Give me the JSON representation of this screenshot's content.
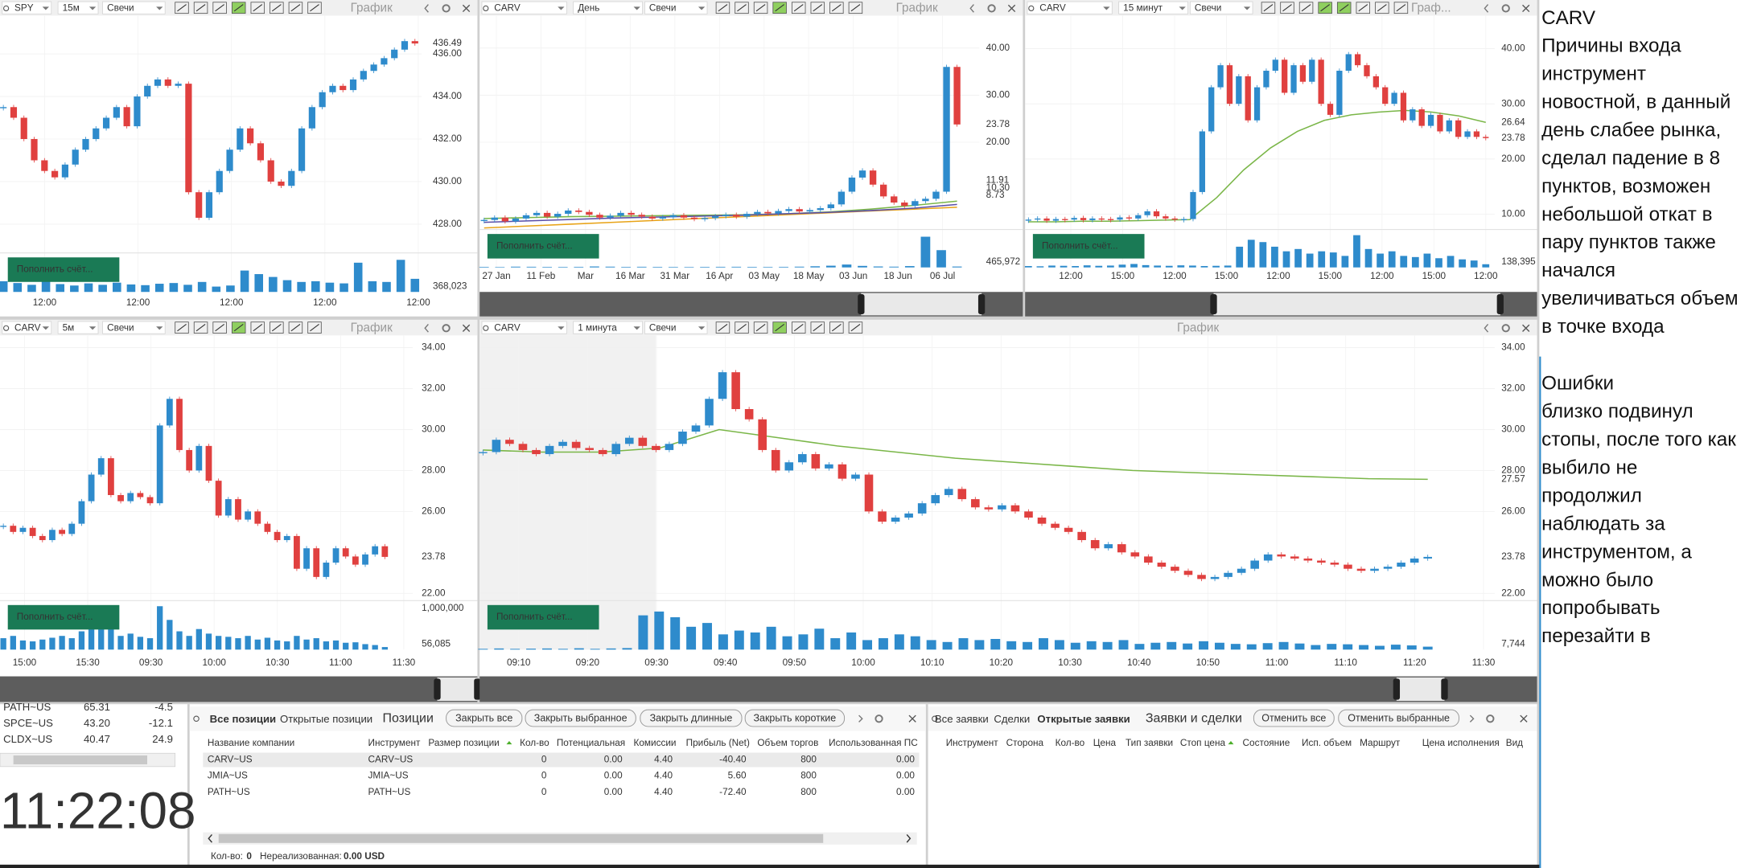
{
  "charts": [
    {
      "symbol": "SPY",
      "timeframe": "15м",
      "style": "Свечи",
      "title": "График",
      "button": "Пополнить счёт...",
      "ylim": [
        426.7,
        437.8
      ],
      "yticks": [
        {
          "value": 428,
          "label": "428.00"
        },
        {
          "value": 430,
          "label": "430.00"
        },
        {
          "value": 432,
          "label": "432.00"
        },
        {
          "value": 434,
          "label": "434.00"
        },
        {
          "value": 436,
          "label": "436.00"
        }
      ],
      "price_labels": [
        {
          "value": 436.49,
          "color": "#d0312d"
        }
      ],
      "xticks": [
        "12:00",
        "12:00",
        "12:00",
        "12:00",
        "12:00"
      ],
      "closes": [
        433.5,
        433.0,
        432.0,
        431.0,
        430.5,
        430.2,
        430.8,
        431.5,
        432.0,
        432.5,
        433.0,
        433.5,
        432.6,
        434.0,
        434.5,
        434.8,
        434.5,
        434.6,
        429.5,
        428.3,
        429.5,
        430.5,
        431.5,
        432.5,
        431.8,
        431.0,
        430.0,
        429.8,
        430.5,
        432.5,
        433.5,
        434.2,
        434.5,
        434.3,
        434.8,
        435.2,
        435.5,
        435.8,
        436.2,
        436.6,
        436.49
      ],
      "ma": [],
      "volumes": [
        300000,
        250000,
        200000,
        350000,
        220000,
        180000,
        240000,
        200000,
        260000,
        210000,
        190000,
        230000,
        250000,
        200000,
        280000,
        150000,
        180000,
        600000,
        500000,
        420000,
        330000,
        280000,
        300000,
        260000,
        240000,
        820000,
        300000,
        280000,
        900000,
        368023
      ],
      "volume_ylim": [
        0,
        1000000
      ],
      "volume_ticks": [],
      "volume_label": "368,023"
    },
    {
      "symbol": "CARV",
      "timeframe": "День",
      "style": "Свечи",
      "title": "График",
      "button": "Пополнить счёт...",
      "ylim": [
        1.7,
        46.9
      ],
      "yticks": [
        {
          "value": 20,
          "label": "20.00"
        },
        {
          "value": 30,
          "label": "30.00"
        },
        {
          "value": 40,
          "label": "40.00"
        }
      ],
      "price_labels": [
        {
          "value": 23.78,
          "color": "#d0312d"
        },
        {
          "value": 11.91,
          "color": "#7ab648"
        },
        {
          "value": 10.3,
          "label": "10.30",
          "color": "#5b4fa8"
        },
        {
          "value": 8.73,
          "color": "#e8a317"
        }
      ],
      "xticks": [
        "27 Jan",
        "11 Feb",
        "Mar",
        "16 Mar",
        "31 Mar",
        "16 Apr",
        "03 May",
        "18 May",
        "03 Jun",
        "18 Jun",
        "06 Jul"
      ],
      "closes": [
        3.5,
        4.0,
        3.2,
        3.8,
        4.5,
        5.0,
        4.2,
        4.8,
        5.5,
        5.2,
        4.6,
        4.0,
        4.4,
        5.0,
        4.6,
        4.2,
        3.8,
        4.1,
        4.5,
        4.0,
        3.7,
        3.9,
        4.3,
        4.6,
        4.2,
        4.8,
        5.2,
        4.9,
        5.4,
        5.8,
        5.3,
        5.6,
        6.0,
        6.8,
        9.5,
        12.5,
        14.0,
        11.0,
        8.5,
        7.2,
        6.5,
        7.5,
        8.0,
        9.5,
        36.0,
        23.78
      ],
      "ma": [
        {
          "color": "#e8a317",
          "values": [
            1.8,
            2.2,
            2.6,
            3.0,
            3.4,
            3.8,
            4.2,
            4.6,
            5.0,
            5.4,
            5.8,
            6.2
          ]
        },
        {
          "color": "#7ab648",
          "values": [
            3.8,
            4.0,
            4.2,
            4.3,
            4.4,
            4.5,
            4.6,
            4.8,
            5.2,
            5.8,
            6.6,
            7.5
          ]
        },
        {
          "color": "#5b4fa8",
          "values": [
            3.0,
            3.3,
            3.6,
            3.9,
            4.1,
            4.3,
            4.5,
            4.8,
            5.1,
            5.5,
            6.0,
            6.8
          ]
        }
      ],
      "volumes": [
        300000,
        250000,
        400000,
        350000,
        300000,
        280000,
        320000,
        500000,
        400000,
        300000,
        350000,
        300000,
        280000,
        260000,
        300000,
        330000,
        350000,
        300000,
        280000,
        320000,
        400000,
        600000,
        900000,
        1500000,
        800000,
        500000,
        400000,
        700000,
        16000000,
        9000000,
        465972
      ],
      "volume_ylim": [
        0,
        18000000
      ],
      "volume_ticks": [],
      "volume_label": "465,972"
    },
    {
      "symbol": "CARV",
      "timeframe": "15 минут",
      "style": "Свечи",
      "title": "Граф...",
      "button": "Пополнить счёт...",
      "ylim": [
        7.4,
        46
      ],
      "yticks": [
        {
          "value": 10,
          "label": "10.00"
        },
        {
          "value": 20,
          "label": "20.00"
        },
        {
          "value": 30,
          "label": "30.00"
        },
        {
          "value": 40,
          "label": "40.00"
        }
      ],
      "price_labels": [
        {
          "value": 26.64,
          "color": "#7ab648"
        },
        {
          "value": 23.78,
          "color": "#2e8bcc"
        }
      ],
      "xticks": [
        "12:00",
        "15:00",
        "12:00",
        "15:00",
        "12:00",
        "15:00",
        "12:00",
        "15:00",
        "12:00"
      ],
      "closes": [
        9.0,
        9.2,
        8.8,
        9.1,
        9.0,
        9.3,
        8.9,
        9.2,
        9.1,
        9.0,
        9.4,
        9.2,
        9.8,
        10.5,
        9.6,
        9.2,
        9.0,
        9.1,
        14,
        25,
        33,
        37,
        30,
        35,
        27,
        33,
        36,
        38,
        32,
        37,
        34,
        38,
        30,
        28,
        36,
        39,
        37,
        35,
        33,
        30,
        32,
        27,
        29,
        26,
        28,
        25,
        27,
        24,
        25,
        24,
        23.78
      ],
      "ma": [
        {
          "color": "#7ab648",
          "values": [
            8.6,
            8.6,
            8.7,
            8.7,
            8.8,
            8.9,
            9.0,
            13,
            18,
            22,
            25,
            27,
            28,
            28.5,
            28.8,
            28.5,
            27.8,
            26.64
          ]
        }
      ],
      "volumes": [
        60000,
        50000,
        80000,
        70000,
        60000,
        90000,
        70000,
        80000,
        120000,
        150000,
        100000,
        80000,
        70000,
        90000,
        80000,
        60000,
        70000,
        80000,
        900000,
        1200000,
        1100000,
        900000,
        700000,
        800000,
        600000,
        700000,
        650000,
        500000,
        1400000,
        800000,
        600000,
        700000,
        500000,
        450000,
        600000,
        400000,
        500000,
        350000,
        300000,
        138395
      ],
      "volume_ylim": [
        0,
        1500000
      ],
      "volume_ticks": [],
      "volume_label": "138,395"
    },
    {
      "symbol": "CARV",
      "timeframe": "5м",
      "style": "Свечи",
      "title": "График",
      "button": "Пополнить счёт...",
      "ylim": [
        21.7,
        34.6
      ],
      "yticks": [
        {
          "value": 22,
          "label": "22.00"
        },
        {
          "value": 26,
          "label": "26.00"
        },
        {
          "value": 28,
          "label": "28.00"
        },
        {
          "value": 30,
          "label": "30.00"
        },
        {
          "value": 32,
          "label": "32.00"
        },
        {
          "value": 34,
          "label": "34.00"
        }
      ],
      "price_labels": [
        {
          "value": 23.78,
          "color": "#2e8bcc"
        }
      ],
      "xticks": [
        "15:00",
        "15:30",
        "09:30",
        "10:00",
        "10:30",
        "11:00",
        "11:30"
      ],
      "closes": [
        25.3,
        25.0,
        25.2,
        24.8,
        24.6,
        25.1,
        24.9,
        25.4,
        26.5,
        27.8,
        28.6,
        26.8,
        26.5,
        26.9,
        26.7,
        26.4,
        30.2,
        31.5,
        29.0,
        28.0,
        29.2,
        27.5,
        25.8,
        26.6,
        25.6,
        26.0,
        25.4,
        25.0,
        24.6,
        24.8,
        23.2,
        24.2,
        22.8,
        23.5,
        24.2,
        23.8,
        23.4,
        23.9,
        24.3,
        23.78
      ],
      "ma": [],
      "volumes": [
        250000,
        300000,
        200000,
        180000,
        220000,
        260000,
        300000,
        250000,
        400000,
        700000,
        500000,
        450000,
        300000,
        350000,
        280000,
        250000,
        950000,
        650000,
        400000,
        300000,
        450000,
        350000,
        300000,
        280000,
        250000,
        300000,
        220000,
        260000,
        200000,
        180000,
        300000,
        220000,
        250000,
        180000,
        200000,
        150000,
        160000,
        120000,
        100000,
        56085
      ],
      "volume_ylim": [
        0,
        1000000
      ],
      "volume_ticks": [
        {
          "value": 1000000,
          "label": "1,000,000"
        }
      ],
      "volume_label": "56,085"
    },
    {
      "symbol": "CARV",
      "timeframe": "1 минута",
      "style": "Свечи",
      "title": "График",
      "button": "Пополнить счёт...",
      "ylim": [
        21.7,
        34.6
      ],
      "yticks": [
        {
          "value": 22,
          "label": "22.00"
        },
        {
          "value": 26,
          "label": "26.00"
        },
        {
          "value": 28,
          "label": "28.00"
        },
        {
          "value": 30,
          "label": "30.00"
        },
        {
          "value": 32,
          "label": "32.00"
        },
        {
          "value": 34,
          "label": "34.00"
        }
      ],
      "price_labels": [
        {
          "value": 27.57,
          "color": "#7ab648"
        },
        {
          "value": 23.78,
          "color": "#d0312d"
        }
      ],
      "xticks": [
        "09:10",
        "09:20",
        "09:30",
        "09:40",
        "09:50",
        "10:00",
        "10:10",
        "10:20",
        "10:30",
        "10:40",
        "10:50",
        "11:00",
        "11:10",
        "11:20",
        "11:30"
      ],
      "closes": [
        28.9,
        29.5,
        29.3,
        29.0,
        28.8,
        29.2,
        29.4,
        29.1,
        29.0,
        28.8,
        29.3,
        29.6,
        29.2,
        29.0,
        29.3,
        29.9,
        30.2,
        31.5,
        32.8,
        31.0,
        30.5,
        29.0,
        28.0,
        28.4,
        28.8,
        28.1,
        28.3,
        27.6,
        27.8,
        26.0,
        25.5,
        25.7,
        25.9,
        26.4,
        26.8,
        27.1,
        26.6,
        26.2,
        26.1,
        26.3,
        26.0,
        25.7,
        25.4,
        25.2,
        25.0,
        24.6,
        24.2,
        24.4,
        24.0,
        23.8,
        23.5,
        23.3,
        23.1,
        22.9,
        22.7,
        22.8,
        23.0,
        23.2,
        23.6,
        23.9,
        23.8,
        23.7,
        23.6,
        23.5,
        23.4,
        23.2,
        23.1,
        23.2,
        23.3,
        23.5,
        23.7,
        23.78
      ],
      "ma": [
        {
          "color": "#7ab648",
          "values": [
            29.0,
            28.9,
            28.9,
            29.1,
            30.0,
            29.6,
            29.2,
            28.9,
            28.6,
            28.4,
            28.2,
            28.0,
            27.9,
            27.8,
            27.7,
            27.6,
            27.57
          ]
        }
      ],
      "volumes": [
        2000,
        3000,
        2000,
        2500,
        3000,
        2000,
        3500,
        2000,
        3000,
        4000,
        90000,
        100000,
        85000,
        60000,
        70000,
        40000,
        50000,
        45000,
        60000,
        35000,
        40000,
        55000,
        30000,
        45000,
        25000,
        30000,
        40000,
        35000,
        25000,
        20000,
        30000,
        25000,
        28000,
        22000,
        20000,
        30000,
        25000,
        18000,
        22000,
        20000,
        25000,
        15000,
        18000,
        20000,
        16000,
        22000,
        18000,
        15000,
        14000,
        17000,
        20000,
        16000,
        12000,
        15000,
        14000,
        12000,
        10000,
        13000,
        11000,
        7744
      ],
      "volume_ylim": [
        0,
        120000
      ],
      "volume_ticks": [],
      "volume_label": "7,744"
    }
  ],
  "watchlist": {
    "rows": [
      [
        "PATH~US",
        "65.31",
        "-4.5"
      ],
      [
        "SPCE~US",
        "43.20",
        "-12.1"
      ],
      [
        "CLDX~US",
        "40.47",
        "24.9"
      ]
    ]
  },
  "clock": "11:22:08",
  "positions": {
    "tabs": [
      "Все позиции",
      "Открытые позиции"
    ],
    "title": "Позиции",
    "buttons": [
      "Закрыть все",
      "Закрыть выбранное",
      "Закрыть длинные",
      "Закрыть короткие"
    ],
    "columns": [
      "Название компании",
      "Инструмент",
      "Размер позиции",
      "Кол-во",
      "Потенциальная",
      "Комиссии",
      "Прибыль (Net)",
      "Объем торгов",
      "Использованная ПС"
    ],
    "rows": [
      [
        "CARV~US",
        "CARV~US",
        "",
        "0",
        "0.00",
        "4.40",
        "-40.40",
        "800",
        "0.00"
      ],
      [
        "JMIA~US",
        "JMIA~US",
        "",
        "0",
        "0.00",
        "4.40",
        "5.60",
        "800",
        "0.00"
      ],
      [
        "PATH~US",
        "PATH~US",
        "",
        "0",
        "0.00",
        "4.40",
        "-72.40",
        "800",
        "0.00"
      ]
    ],
    "footer": {
      "qty_label": "Кол-во:",
      "qty": "0",
      "unrealized_label": "Нереализованная:",
      "unrealized": "0.00 USD"
    }
  },
  "orders": {
    "tabs": [
      "Все заявки",
      "Сделки",
      "Открытые заявки"
    ],
    "title": "Заявки и сделки",
    "buttons": [
      "Отменить все",
      "Отменить выбранные"
    ],
    "columns": [
      "Инструмент",
      "Сторона",
      "Кол-во",
      "Цена",
      "Тип заявки",
      "Стоп цена",
      "Состояние",
      "Исп. объем",
      "Маршрут",
      "Цена исполнения",
      "Вид"
    ]
  },
  "notes": {
    "title": "CARV",
    "reasons": [
      "Причины входа",
      "инструмент",
      "новостной, в данный",
      "день слабее рынка,",
      "сделал падение в 8",
      "пунктов, возможен",
      "небольшой откат в",
      "пару пунктов также",
      "начался",
      "увеличиваться объем",
      "в точке входа"
    ],
    "errors": [
      "Ошибки",
      "близко подвинул",
      "стопы, после того как",
      "выбило не",
      "продолжил",
      "наблюдать за",
      "инструментом, а",
      "можно было",
      "попробывать",
      "перезайти в"
    ]
  }
}
